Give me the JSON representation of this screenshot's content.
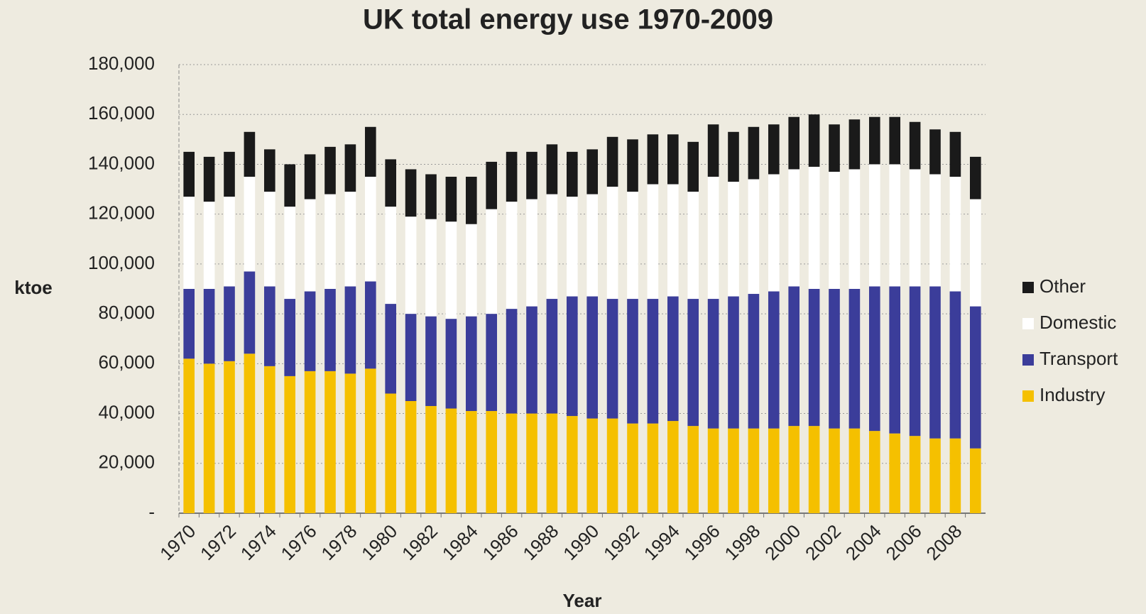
{
  "chart_data": {
    "type": "stacked_bar",
    "title": "UK total energy use 1970-2009",
    "x_label": "Year",
    "y_label": "ktoe",
    "categories": [
      1970,
      null,
      1972,
      null,
      1974,
      null,
      1976,
      null,
      1978,
      null,
      1980,
      null,
      1982,
      null,
      1984,
      null,
      1986,
      null,
      1988,
      null,
      1990,
      null,
      1992,
      null,
      1994,
      null,
      1996,
      null,
      1998,
      null,
      2000,
      null,
      2002,
      null,
      2004,
      null,
      2006,
      null,
      2008,
      null
    ],
    "series": [
      {
        "name": "Industry",
        "color": "#f5c000",
        "values": [
          62000,
          60000,
          61000,
          64000,
          59000,
          55000,
          57000,
          57000,
          56000,
          58000,
          48000,
          45000,
          43000,
          42000,
          41000,
          41000,
          40000,
          40000,
          40000,
          39000,
          38000,
          38000,
          36000,
          36000,
          37000,
          35000,
          34000,
          34000,
          34000,
          34000,
          35000,
          35000,
          34000,
          34000,
          33000,
          32000,
          31000,
          30000,
          30000,
          26000
        ]
      },
      {
        "name": "Transport",
        "color": "#3b3d9a",
        "values": [
          28000,
          30000,
          30000,
          33000,
          32000,
          31000,
          32000,
          33000,
          35000,
          35000,
          36000,
          35000,
          36000,
          36000,
          38000,
          39000,
          42000,
          43000,
          46000,
          48000,
          49000,
          48000,
          50000,
          50000,
          50000,
          51000,
          52000,
          53000,
          54000,
          55000,
          56000,
          55000,
          56000,
          56000,
          58000,
          59000,
          60000,
          61000,
          59000,
          57000
        ]
      },
      {
        "name": "Domestic",
        "color": "#ffffff",
        "values": [
          37000,
          35000,
          36000,
          38000,
          38000,
          37000,
          37000,
          38000,
          38000,
          42000,
          39000,
          39000,
          39000,
          39000,
          37000,
          42000,
          43000,
          43000,
          42000,
          40000,
          41000,
          45000,
          43000,
          46000,
          45000,
          43000,
          49000,
          46000,
          46000,
          47000,
          47000,
          49000,
          47000,
          48000,
          49000,
          49000,
          47000,
          45000,
          46000,
          43000
        ]
      },
      {
        "name": "Other",
        "color": "#1a1a1a",
        "values": [
          18000,
          18000,
          18000,
          18000,
          17000,
          17000,
          18000,
          19000,
          19000,
          20000,
          19000,
          19000,
          18000,
          18000,
          19000,
          19000,
          20000,
          19000,
          20000,
          18000,
          18000,
          20000,
          21000,
          20000,
          20000,
          20000,
          21000,
          20000,
          21000,
          20000,
          21000,
          21000,
          19000,
          20000,
          19000,
          19000,
          19000,
          18000,
          18000,
          17000
        ]
      }
    ],
    "ylim": [
      0,
      180000
    ],
    "yticks": [
      {
        "value": 0,
        "label": "-"
      },
      {
        "value": 20000,
        "label": "20,000"
      },
      {
        "value": 40000,
        "label": "40,000"
      },
      {
        "value": 60000,
        "label": "60,000"
      },
      {
        "value": 80000,
        "label": "80,000"
      },
      {
        "value": 100000,
        "label": "100,000"
      },
      {
        "value": 120000,
        "label": "120,000"
      },
      {
        "value": 140000,
        "label": "140,000"
      },
      {
        "value": 160000,
        "label": "160,000"
      },
      {
        "value": 180000,
        "label": "180,000"
      }
    ],
    "grid": true,
    "legend": "right"
  }
}
